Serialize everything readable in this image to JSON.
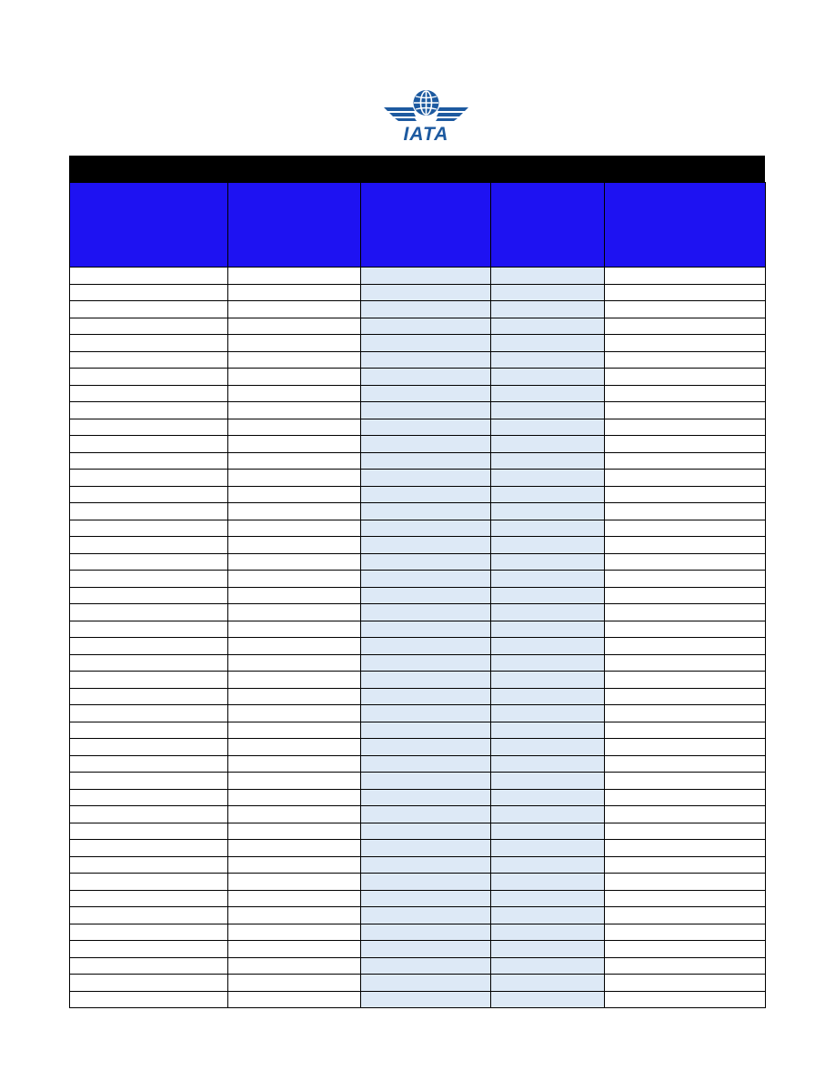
{
  "logo": {
    "text": "IATA",
    "color": "#1d5aa0"
  },
  "table": {
    "title": "",
    "header_color": "#1e12f2",
    "shaded_color": "#dde9f6",
    "columns": [
      {
        "label": "",
        "shaded": false
      },
      {
        "label": "",
        "shaded": false
      },
      {
        "label": "",
        "shaded": true
      },
      {
        "label": "",
        "shaded": true
      },
      {
        "label": "",
        "shaded": false
      }
    ],
    "row_count": 44
  }
}
